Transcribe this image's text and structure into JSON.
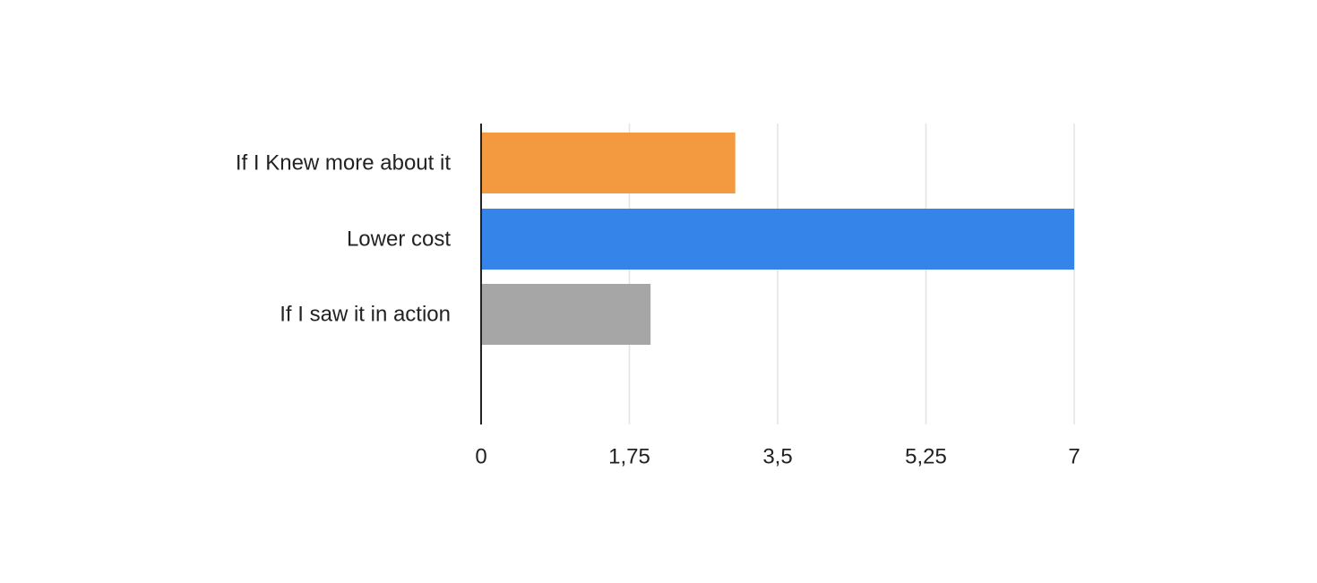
{
  "chart_data": {
    "type": "bar",
    "orientation": "horizontal",
    "title": "",
    "xlabel": "",
    "ylabel": "",
    "categories": [
      "If I Knew more about it",
      "Lower cost",
      "If I saw it in action"
    ],
    "values": [
      3,
      7,
      2
    ],
    "colors": [
      "#f39a41",
      "#3584e9",
      "#a6a6a6"
    ],
    "xlim": [
      0,
      7
    ],
    "xticks": [
      0,
      1.75,
      3.5,
      5.25,
      7
    ],
    "xtick_labels": [
      "0",
      "1,75",
      "3,5",
      "5,25",
      "7"
    ],
    "grid": true,
    "legend": "none"
  }
}
